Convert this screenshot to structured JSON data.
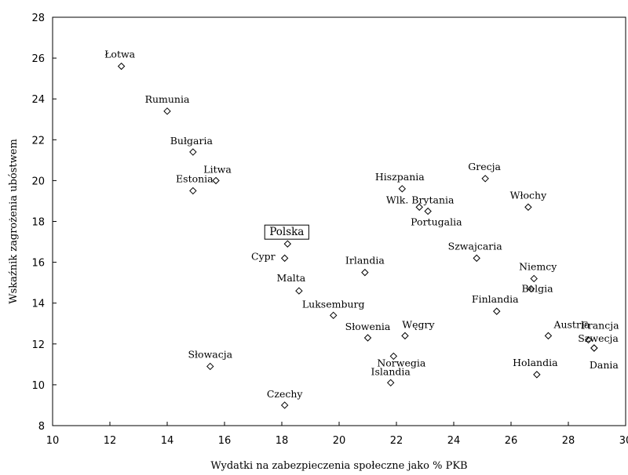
{
  "chart_data": {
    "type": "scatter",
    "title": "",
    "xlabel": "Wydatki na zabezpieczenia społeczne jako % PKB",
    "ylabel": "Wskaźnik zagrożenia ubóstwem",
    "xlim": [
      10,
      30
    ],
    "ylim": [
      8,
      28
    ],
    "xticks": [
      "10",
      "12",
      "14",
      "16",
      "18",
      "20",
      "22",
      "24",
      "26",
      "28",
      "30"
    ],
    "yticks": [
      "8",
      "10",
      "12",
      "14",
      "16",
      "18",
      "20",
      "22",
      "24",
      "26",
      "28"
    ],
    "grid": false,
    "marker": "open-diamond",
    "highlighted": "Polska",
    "points": [
      {
        "label": "Łotwa",
        "x": 12.4,
        "y": 25.6
      },
      {
        "label": "Rumunia",
        "x": 14.0,
        "y": 23.4
      },
      {
        "label": "Bułgaria",
        "x": 14.9,
        "y": 21.4
      },
      {
        "label": "Litwa",
        "x": 15.7,
        "y": 20.0
      },
      {
        "label": "Estonia",
        "x": 14.9,
        "y": 19.5
      },
      {
        "label": "Polska",
        "x": 18.2,
        "y": 16.9
      },
      {
        "label": "Cypr",
        "x": 18.1,
        "y": 16.2
      },
      {
        "label": "Malta",
        "x": 18.6,
        "y": 14.6
      },
      {
        "label": "Luksemburg",
        "x": 19.8,
        "y": 13.4
      },
      {
        "label": "Słowacja",
        "x": 15.5,
        "y": 10.9
      },
      {
        "label": "Czechy",
        "x": 18.1,
        "y": 9.0
      },
      {
        "label": "Irlandia",
        "x": 20.9,
        "y": 15.5
      },
      {
        "label": "Słowenia",
        "x": 21.0,
        "y": 12.3
      },
      {
        "label": "Węgry",
        "x": 22.3,
        "y": 12.4
      },
      {
        "label": "Norwegia",
        "x": 21.9,
        "y": 11.4
      },
      {
        "label": "Islandia",
        "x": 21.8,
        "y": 10.1
      },
      {
        "label": "Hiszpania",
        "x": 22.2,
        "y": 19.6
      },
      {
        "label": "Wlk. Brytania",
        "x": 22.8,
        "y": 18.7
      },
      {
        "label": "Portugalia",
        "x": 23.1,
        "y": 18.5
      },
      {
        "label": "Grecja",
        "x": 25.1,
        "y": 20.1
      },
      {
        "label": "Włochy",
        "x": 26.6,
        "y": 18.7
      },
      {
        "label": "Szwajcaria",
        "x": 24.8,
        "y": 16.2
      },
      {
        "label": "Niemcy",
        "x": 26.8,
        "y": 15.2
      },
      {
        "label": "Belgia",
        "x": 26.7,
        "y": 14.7
      },
      {
        "label": "Finlandia",
        "x": 25.5,
        "y": 13.6
      },
      {
        "label": "Austria",
        "x": 27.3,
        "y": 12.4
      },
      {
        "label": "Francja",
        "x": 28.7,
        "y": 12.2
      },
      {
        "label": "Szwecja",
        "x": 28.9,
        "y": 11.8
      },
      {
        "label": "Dania",
        "x": 28.9,
        "y": 11.8
      },
      {
        "label": "Holandia",
        "x": 26.9,
        "y": 10.5
      }
    ]
  }
}
